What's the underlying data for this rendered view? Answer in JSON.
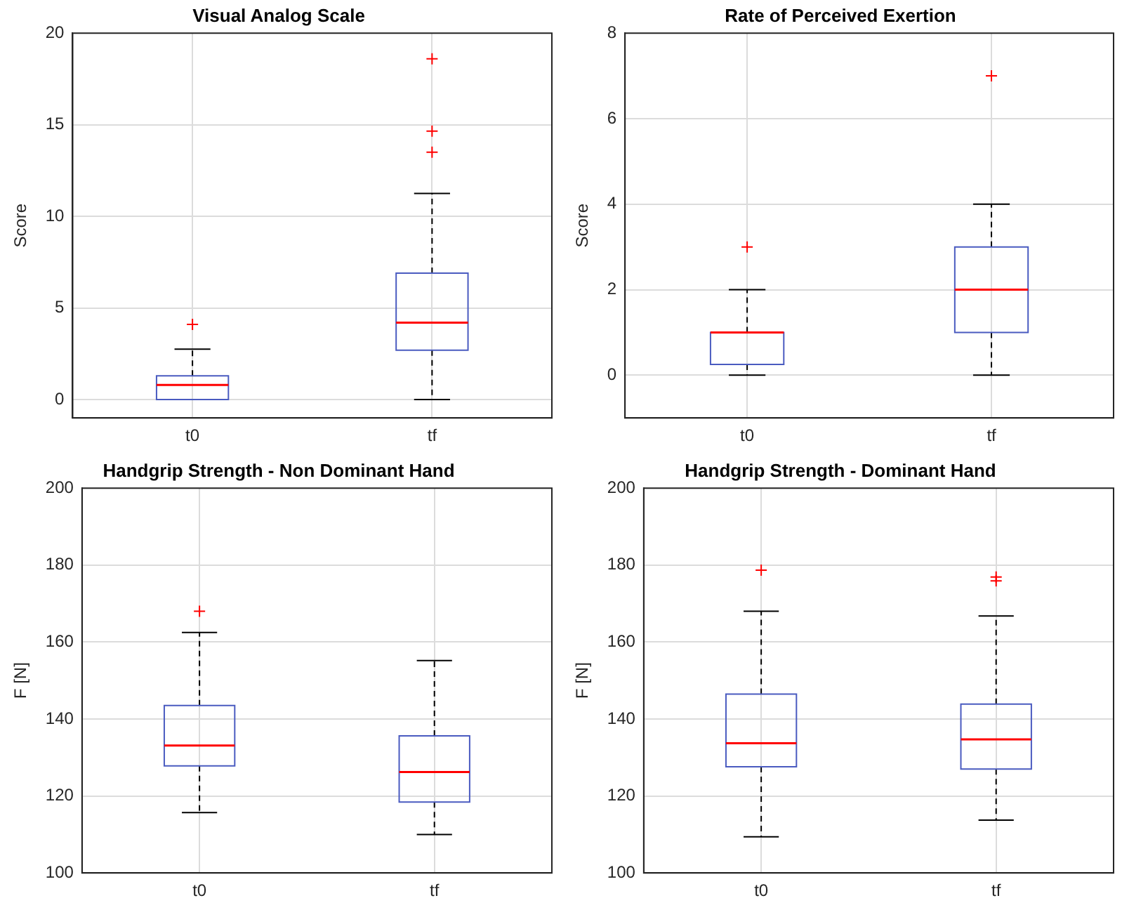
{
  "chart_data": [
    {
      "type": "box",
      "title": "Visual Analog Scale",
      "ylabel": "Score",
      "categories": [
        "t0",
        "tf"
      ],
      "ylim": [
        -1,
        20
      ],
      "yticks": [
        0,
        5,
        10,
        15,
        20
      ],
      "grid": true,
      "legend": false,
      "series": [
        {
          "color": "#4a5bc0",
          "boxes": [
            {
              "low": 0,
              "q1": 0,
              "median": 0.8,
              "q3": 1.3,
              "high": 2.75,
              "outliers": [
                4.1
              ]
            },
            {
              "low": 0,
              "q1": 2.7,
              "median": 4.2,
              "q3": 6.9,
              "high": 11.25,
              "outliers": [
                13.5,
                14.65,
                18.6
              ]
            }
          ]
        }
      ]
    },
    {
      "type": "box",
      "title": "Rate of Perceived Exertion",
      "ylabel": "Score",
      "categories": [
        "t0",
        "tf"
      ],
      "ylim": [
        -1,
        8
      ],
      "yticks": [
        0,
        2,
        4,
        6,
        8
      ],
      "grid": true,
      "legend": false,
      "series": [
        {
          "color": "#4a5bc0",
          "boxes": [
            {
              "low": 0,
              "q1": 0.25,
              "median": 1,
              "q3": 1,
              "high": 2,
              "outliers": [
                3
              ]
            },
            {
              "low": 0,
              "q1": 1,
              "median": 2,
              "q3": 3,
              "high": 4,
              "outliers": [
                7
              ]
            }
          ]
        }
      ]
    },
    {
      "type": "box",
      "title": "Handgrip Strength - Non Dominant Hand",
      "ylabel": "F [N]",
      "categories": [
        "t0",
        "tf"
      ],
      "ylim": [
        100,
        200
      ],
      "yticks": [
        100,
        120,
        140,
        160,
        180,
        200
      ],
      "grid": true,
      "legend": false,
      "series": [
        {
          "color": "#4a5bc0",
          "boxes": [
            {
              "low": 115.7,
              "q1": 127.8,
              "median": 133.1,
              "q3": 143.5,
              "high": 162.5,
              "outliers": [
                168
              ]
            },
            {
              "low": 110,
              "q1": 118.4,
              "median": 126.2,
              "q3": 135.6,
              "high": 155.2
            }
          ]
        }
      ]
    },
    {
      "type": "box",
      "title": "Handgrip Strength - Dominant Hand",
      "ylabel": "F [N]",
      "categories": [
        "t0",
        "tf"
      ],
      "ylim": [
        100,
        200
      ],
      "yticks": [
        100,
        120,
        140,
        160,
        180,
        200
      ],
      "grid": true,
      "legend": false,
      "series": [
        {
          "color": "#4a5bc0",
          "boxes": [
            {
              "low": 109.4,
              "q1": 127.6,
              "median": 133.7,
              "q3": 146.5,
              "high": 168,
              "outliers": [
                178.7
              ]
            },
            {
              "low": 113.7,
              "q1": 127,
              "median": 134.7,
              "q3": 143.9,
              "high": 166.8,
              "outliers": [
                175.9,
                176.9
              ]
            }
          ]
        }
      ]
    }
  ]
}
